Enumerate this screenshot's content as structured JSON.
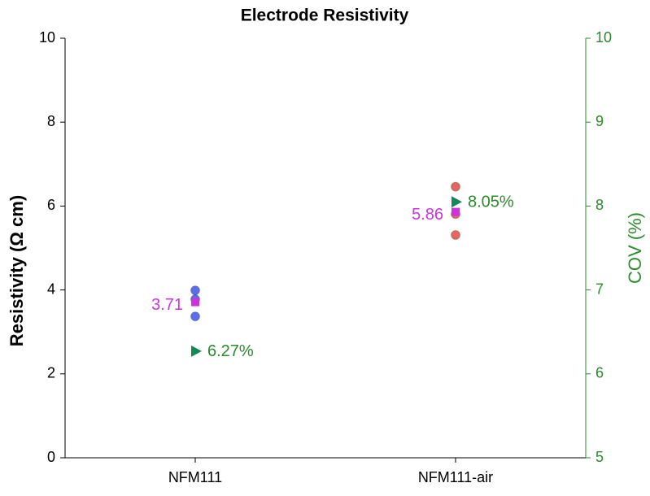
{
  "chart_data": {
    "type": "scatter",
    "title": "Electrode Resistivity",
    "ylabel": "Resistivity (Ω cm)",
    "y2label": "COV (%)",
    "categories": [
      "NFM111",
      "NFM111-air"
    ],
    "ylim": [
      0,
      10
    ],
    "yticks": [
      0,
      2,
      4,
      6,
      8,
      10
    ],
    "y2lim": [
      5,
      10
    ],
    "y2ticks": [
      5,
      6,
      7,
      8,
      9,
      10
    ],
    "y2color": "#2a8a2a",
    "series": [
      {
        "marker": "circle",
        "color": [
          "#5b6ee6",
          "#e2675f"
        ],
        "values": [
          [
            3.99,
            3.78,
            3.37
          ],
          [
            6.46,
            5.81,
            5.31
          ]
        ]
      },
      {
        "marker": "square",
        "color": "#cc33dd",
        "values": [
          3.71,
          5.86
        ]
      },
      {
        "marker": "triangle",
        "axis": "y2",
        "color": "#138a55",
        "label_color": "#2a8a2a",
        "values": [
          6.27,
          8.05
        ],
        "value_labels": [
          "6.27%",
          "8.05%"
        ]
      }
    ]
  }
}
